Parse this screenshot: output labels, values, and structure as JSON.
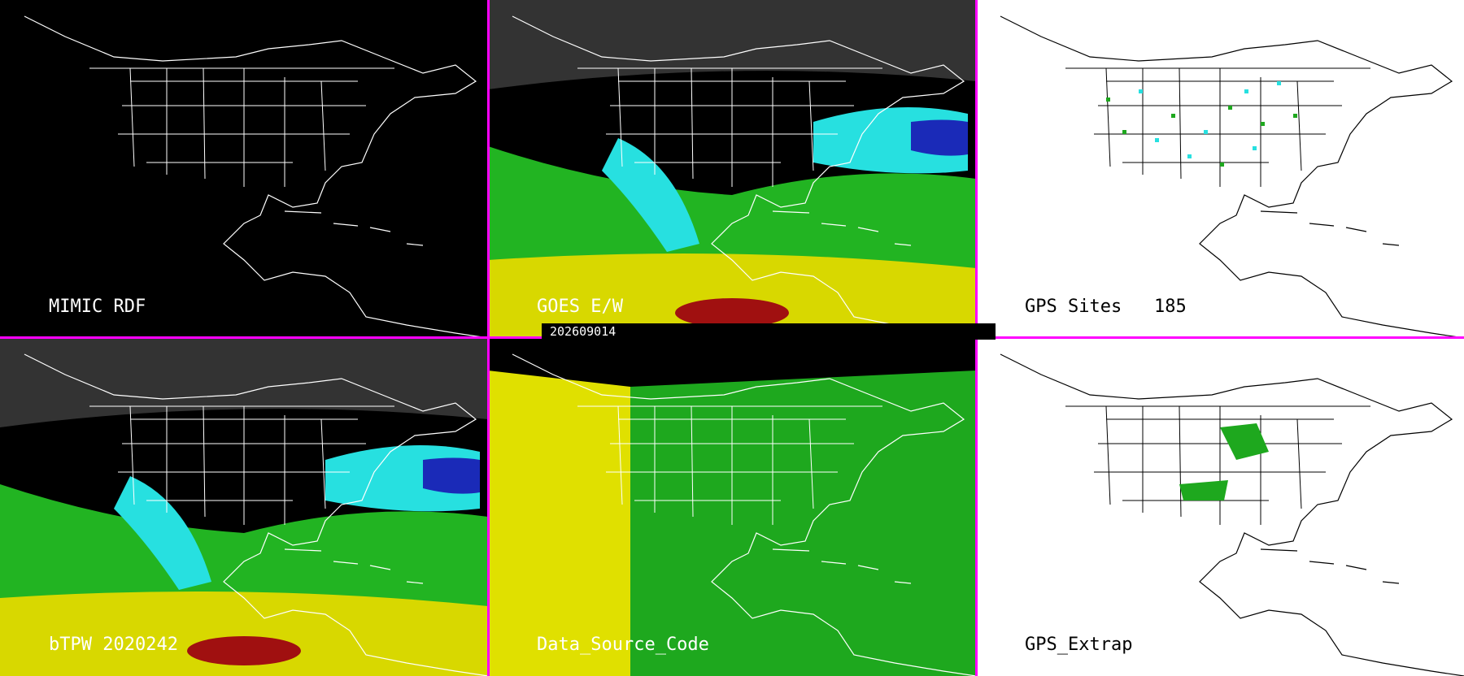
{
  "timestamp": "202609014",
  "panels": [
    {
      "id": "mimic",
      "label": "MIMIC RDF",
      "theme": "dark",
      "fill": "none"
    },
    {
      "id": "goes",
      "label": "GOES E/W",
      "theme": "dark",
      "fill": "tpw"
    },
    {
      "id": "gps-sites",
      "label": "GPS Sites",
      "count": "185",
      "theme": "light",
      "fill": "sites"
    },
    {
      "id": "btpw",
      "label": "bTPW 2020242",
      "theme": "dark",
      "fill": "tpw"
    },
    {
      "id": "source",
      "label": "Data_Source_Code",
      "theme": "dark",
      "fill": "source"
    },
    {
      "id": "gps-extrap",
      "label": "GPS_Extrap",
      "theme": "light",
      "fill": "extrap"
    }
  ],
  "colors": {
    "divider": "#ff00ff",
    "tpw_low": "#d8d800",
    "tpw_mid": "#22b422",
    "tpw_high": "#27e0e0",
    "tpw_max": "#1a2ab8",
    "tpw_dry": "#a01010",
    "source_yellow": "#e0e000",
    "source_green": "#1ea81e"
  }
}
